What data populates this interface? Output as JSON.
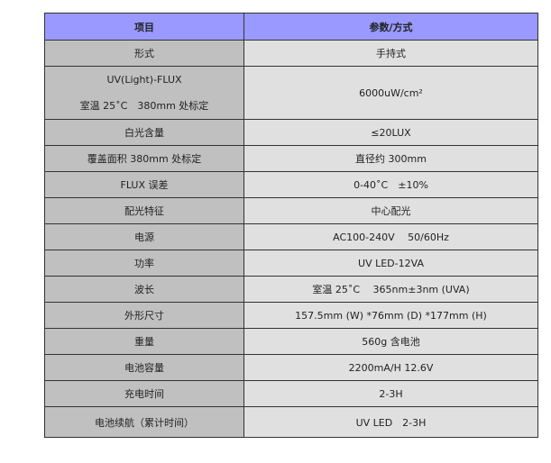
{
  "header": {
    "item": "项目",
    "value": "参数/方式"
  },
  "rows": [
    {
      "key": "形式",
      "value": "手持式"
    },
    {
      "key": "UV(Light)-FLUX",
      "key2": "室温 25˚C　380mm 处标定",
      "value": "6000uW/cm²"
    },
    {
      "key": "白光含量",
      "value": "≤20LUX"
    },
    {
      "key": "覆盖面积 380mm 处标定",
      "value": "直径约 300mm"
    },
    {
      "key": "FLUX 误差",
      "value": "0-40˚C　±10%"
    },
    {
      "key": "配光特征",
      "value": "中心配光"
    },
    {
      "key": "电源",
      "value": "AC100-240V　 50/60Hz"
    },
    {
      "key": "功率",
      "value": "UV LED-12VA"
    },
    {
      "key": "波长",
      "value": "室温 25˚C　 365nm±3nm (UVA)"
    },
    {
      "key": "外形尺寸",
      "value": "157.5mm (W) *76mm (D) *177mm (H)"
    },
    {
      "key": "重量",
      "value": "560g 含电池"
    },
    {
      "key": "电池容量",
      "value": "2200mA/H 12.6V"
    },
    {
      "key": "充电时间",
      "value": "2-3H"
    },
    {
      "key": "电池续航（累计时间）",
      "value": "UV LED　2-3H"
    }
  ],
  "colors": {
    "header": "#9999ff",
    "key_column": "#c0c0c0",
    "value_column": "#e0e0e0"
  }
}
